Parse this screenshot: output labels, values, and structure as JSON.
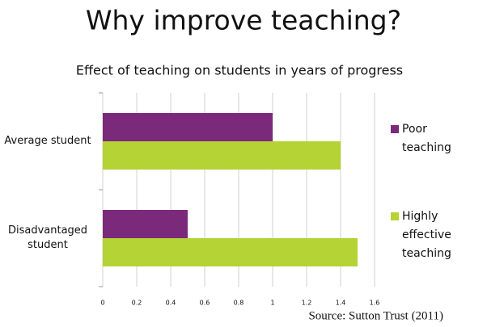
{
  "chart_data": {
    "type": "hbar",
    "title": "Why improve teaching?",
    "subtitle": "Effect of teaching on students in years of progress",
    "categories": [
      "Average student",
      "Disadvantaged student"
    ],
    "series": [
      {
        "name": "Poor teaching",
        "color": "#7b2a7b",
        "values": [
          1,
          0.5
        ]
      },
      {
        "name": "Highly effective teaching",
        "color": "#b5d334",
        "values": [
          1.4,
          1.5
        ]
      }
    ],
    "xlim": [
      0,
      1.6
    ],
    "xticks": [
      0,
      0.2,
      0.4,
      0.6,
      0.8,
      1,
      1.2,
      1.4,
      1.6
    ],
    "grid": true,
    "legend": "right",
    "annotation": "Source: Sutton Trust (2011)"
  }
}
